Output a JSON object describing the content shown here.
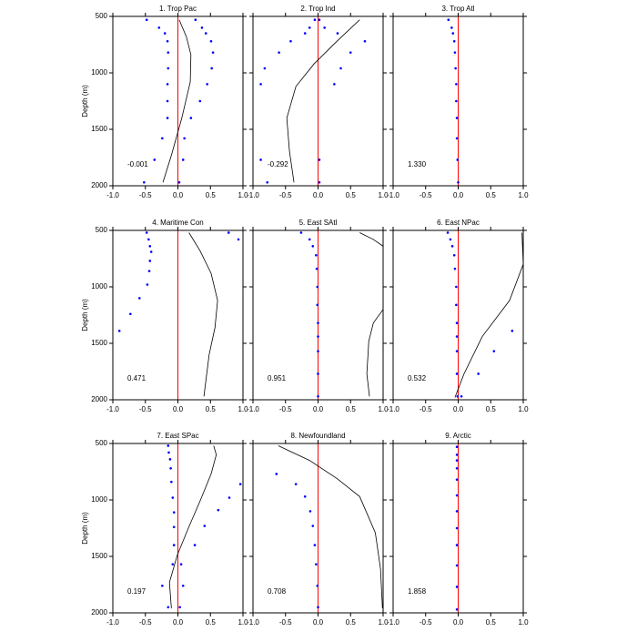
{
  "chart_data": [
    {
      "type": "line",
      "title": "1. Trop Pac",
      "annotation": "-0.001",
      "ylabel": "Depth (m)",
      "ytick_labels": true,
      "y_inverted": true,
      "ref_line_x": 0,
      "ref_color": "#ff0000",
      "xlim": [
        -1,
        1
      ],
      "ylim": [
        500,
        2000
      ],
      "xticks": [
        {
          "value": -1,
          "label": "-1.0"
        },
        {
          "value": -0.5,
          "label": "-0.5"
        },
        {
          "value": 0,
          "label": "0.0"
        },
        {
          "value": 0.5,
          "label": "0.5"
        },
        {
          "value": 1,
          "label": "1.0"
        }
      ],
      "yticks": [
        500,
        1000,
        1500,
        2000
      ],
      "series": [
        {
          "kind": "line",
          "color": "#000000",
          "x": [
            0.02,
            0.13,
            0.2,
            0.19,
            0.06,
            -0.1,
            -0.23
          ],
          "y": [
            530,
            680,
            840,
            1080,
            1400,
            1730,
            1970
          ]
        },
        {
          "kind": "points",
          "color": "#0000ff",
          "x": [
            -0.48,
            -0.29,
            -0.2,
            -0.16,
            -0.15,
            -0.15,
            -0.16,
            -0.16,
            -0.16,
            -0.24,
            -0.36,
            -0.52
          ],
          "y": [
            530,
            600,
            650,
            720,
            820,
            960,
            1100,
            1250,
            1400,
            1580,
            1770,
            1970
          ]
        },
        {
          "kind": "points",
          "color": "#0000ff",
          "x": [
            0.27,
            0.37,
            0.43,
            0.51,
            0.54,
            0.52,
            0.45,
            0.34,
            0.2,
            0.1,
            0.08,
            0.02
          ],
          "y": [
            530,
            600,
            650,
            720,
            820,
            960,
            1100,
            1250,
            1400,
            1580,
            1770,
            1970
          ]
        }
      ]
    },
    {
      "type": "line",
      "title": "2. Trop Ind",
      "annotation": "-0.292",
      "ytick_labels": false,
      "y_inverted": true,
      "ref_line_x": 0,
      "ref_color": "#ff0000",
      "xlim": [
        -1,
        1
      ],
      "ylim": [
        500,
        2000
      ],
      "xticks": [
        {
          "value": -1,
          "label": "-1.0"
        },
        {
          "value": -0.5,
          "label": "-0.5"
        },
        {
          "value": 0,
          "label": "0.0"
        },
        {
          "value": 0.5,
          "label": "0.5"
        },
        {
          "value": 1,
          "label": "1.0"
        }
      ],
      "yticks": [
        500,
        1000,
        1500,
        2000
      ],
      "series": [
        {
          "kind": "line",
          "color": "#000000",
          "x": [
            0.64,
            0.29,
            -0.06,
            -0.34,
            -0.48,
            -0.44,
            -0.37
          ],
          "y": [
            530,
            720,
            920,
            1120,
            1400,
            1690,
            1970
          ]
        },
        {
          "kind": "points",
          "color": "#0000ff",
          "x": [
            -0.05,
            -0.13,
            -0.2,
            -0.42,
            -0.6,
            -0.82,
            -0.88,
            null,
            null,
            null,
            -0.88,
            -0.78
          ],
          "y": [
            530,
            600,
            650,
            720,
            820,
            960,
            1100,
            1250,
            1400,
            1580,
            1770,
            1970
          ]
        },
        {
          "kind": "points",
          "color": "#0000ff",
          "x": [
            0.02,
            0.1,
            0.3,
            0.72,
            0.5,
            0.35,
            0.25,
            null,
            null,
            null,
            0.02,
            0.02
          ],
          "y": [
            530,
            600,
            650,
            720,
            820,
            960,
            1100,
            1250,
            1400,
            1580,
            1770,
            1970
          ]
        }
      ]
    },
    {
      "type": "line",
      "title": "3. Trop Atl",
      "annotation": "1.330",
      "ytick_labels": false,
      "y_inverted": true,
      "ref_line_x": 0,
      "ref_color": "#ff0000",
      "xlim": [
        -1,
        1
      ],
      "ylim": [
        500,
        2000
      ],
      "xticks": [
        {
          "value": -1,
          "label": "-1.0"
        },
        {
          "value": -0.5,
          "label": "-0.5"
        },
        {
          "value": 0,
          "label": "0.0"
        },
        {
          "value": 0.5,
          "label": "0.5"
        },
        {
          "value": 1,
          "label": "1.0"
        }
      ],
      "yticks": [
        500,
        1000,
        1500,
        2000
      ],
      "series": [
        {
          "kind": "points",
          "color": "#0000ff",
          "x": [
            -0.15,
            -0.1,
            -0.08,
            -0.06,
            -0.05,
            -0.04,
            -0.03,
            -0.03,
            -0.02,
            -0.02,
            -0.01,
            0
          ],
          "y": [
            530,
            600,
            650,
            720,
            820,
            960,
            1100,
            1250,
            1400,
            1580,
            1770,
            1970
          ]
        }
      ]
    },
    {
      "type": "line",
      "title": "4. Maritime Con",
      "annotation": "0.471",
      "ylabel": "Depth (m)",
      "ytick_labels": true,
      "y_inverted": true,
      "ref_line_x": 0,
      "ref_color": "#ff0000",
      "xlim": [
        -1,
        1
      ],
      "ylim": [
        500,
        2000
      ],
      "xticks": [
        {
          "value": -1,
          "label": "-1.0"
        },
        {
          "value": -0.5,
          "label": "-0.5"
        },
        {
          "value": 0,
          "label": "0.0"
        },
        {
          "value": 0.5,
          "label": "0.5"
        },
        {
          "value": 1,
          "label": "1.0"
        }
      ],
      "yticks": [
        500,
        1000,
        1500,
        2000
      ],
      "series": [
        {
          "kind": "line",
          "color": "#000000",
          "x": [
            0.17,
            0.34,
            0.51,
            0.61,
            0.57,
            0.48,
            0.4
          ],
          "y": [
            520,
            680,
            880,
            1120,
            1360,
            1600,
            1970
          ]
        },
        {
          "kind": "points",
          "color": "#0000ff",
          "x": [
            -0.48,
            -0.45,
            -0.43,
            -0.41,
            -0.43,
            -0.44,
            -0.47,
            -0.59,
            -0.73,
            -0.9
          ],
          "y": [
            520,
            580,
            640,
            690,
            770,
            860,
            980,
            1100,
            1240,
            1390
          ]
        },
        {
          "kind": "points",
          "color": "#0000ff",
          "x": [
            0.78,
            0.93
          ],
          "y": [
            520,
            580
          ]
        }
      ]
    },
    {
      "type": "line",
      "title": "5. East SAtl",
      "annotation": "0.951",
      "ytick_labels": false,
      "y_inverted": true,
      "ref_line_x": 0,
      "ref_color": "#ff0000",
      "xlim": [
        -1,
        1
      ],
      "ylim": [
        500,
        2000
      ],
      "xticks": [
        {
          "value": -1,
          "label": "-1.0"
        },
        {
          "value": -0.5,
          "label": "-0.5"
        },
        {
          "value": 0,
          "label": "0.0"
        },
        {
          "value": 0.5,
          "label": "0.5"
        },
        {
          "value": 1,
          "label": "1.0"
        }
      ],
      "yticks": [
        500,
        1000,
        1500,
        2000
      ],
      "series": [
        {
          "kind": "line",
          "color": "#000000",
          "x": [
            0.64,
            0.85,
            1,
            null,
            1,
            0.85,
            0.78,
            0.75,
            0.79
          ],
          "y": [
            520,
            580,
            640,
            null,
            1200,
            1320,
            1480,
            1770,
            1970
          ]
        },
        {
          "kind": "points",
          "color": "#0000ff",
          "x": [
            -0.26,
            -0.13,
            -0.08,
            -0.03,
            -0.02,
            -0.01,
            -0.01,
            0,
            0,
            0,
            0,
            0
          ],
          "y": [
            520,
            580,
            640,
            720,
            840,
            1000,
            1160,
            1320,
            1440,
            1570,
            1770,
            1970
          ]
        }
      ]
    },
    {
      "type": "line",
      "title": "6. East NPac",
      "annotation": "0.532",
      "ytick_labels": false,
      "y_inverted": true,
      "ref_line_x": 0,
      "ref_color": "#ff0000",
      "xlim": [
        -1,
        1
      ],
      "ylim": [
        500,
        2000
      ],
      "xticks": [
        {
          "value": -1,
          "label": "-1.0"
        },
        {
          "value": -0.5,
          "label": "-0.5"
        },
        {
          "value": 0,
          "label": "0.0"
        },
        {
          "value": 0.5,
          "label": "0.5"
        },
        {
          "value": 1,
          "label": "1.0"
        }
      ],
      "yticks": [
        500,
        1000,
        1500,
        2000
      ],
      "series": [
        {
          "kind": "line",
          "color": "#000000",
          "x": [
            0.98,
            1,
            0.79,
            0.37,
            0.09,
            -0.05
          ],
          "y": [
            520,
            800,
            1120,
            1440,
            1770,
            1980
          ]
        },
        {
          "kind": "points",
          "color": "#0000ff",
          "x": [
            -0.16,
            -0.12,
            -0.09,
            -0.06,
            -0.05,
            -0.03,
            -0.03,
            -0.02,
            -0.02,
            -0.02,
            -0.02,
            -0.01
          ],
          "y": [
            520,
            580,
            640,
            720,
            840,
            1000,
            1160,
            1320,
            1440,
            1570,
            1770,
            1970
          ]
        },
        {
          "kind": "points",
          "color": "#0000ff",
          "x": [
            0.83,
            0.55,
            0.31,
            0.05
          ],
          "y": [
            1390,
            1570,
            1770,
            1970
          ]
        }
      ]
    },
    {
      "type": "line",
      "title": "7. East SPac",
      "annotation": "0.197",
      "ylabel": "Depth (m)",
      "ytick_labels": true,
      "y_inverted": true,
      "ref_line_x": 0,
      "ref_color": "#ff0000",
      "xlim": [
        -1,
        1
      ],
      "ylim": [
        500,
        2000
      ],
      "xticks": [
        {
          "value": -1,
          "label": "-1.0"
        },
        {
          "value": -0.5,
          "label": "-0.5"
        },
        {
          "value": 0,
          "label": "0.0"
        },
        {
          "value": 0.5,
          "label": "0.5"
        },
        {
          "value": 1,
          "label": "1.0"
        }
      ],
      "yticks": [
        500,
        1000,
        1500,
        2000
      ],
      "series": [
        {
          "kind": "line",
          "color": "#000000",
          "x": [
            0.55,
            0.59,
            0.51,
            0.34,
            0.16,
            -0.01,
            -0.13,
            -0.1
          ],
          "y": [
            520,
            600,
            770,
            1010,
            1250,
            1490,
            1730,
            1960
          ]
        },
        {
          "kind": "points",
          "color": "#0000ff",
          "x": [
            -0.15,
            -0.14,
            -0.12,
            -0.11,
            -0.1,
            -0.08,
            -0.06,
            -0.06,
            -0.06,
            -0.08,
            -0.24,
            -0.15
          ],
          "y": [
            520,
            580,
            640,
            720,
            840,
            980,
            1110,
            1240,
            1400,
            1570,
            1760,
            1950
          ]
        },
        {
          "kind": "points",
          "color": "#0000ff",
          "x": [
            0.96,
            0.79,
            0.62,
            0.41,
            0.26,
            0.05,
            0.08,
            0.03
          ],
          "y": [
            860,
            980,
            1090,
            1230,
            1400,
            1570,
            1760,
            1950
          ]
        }
      ]
    },
    {
      "type": "line",
      "title": "8. Newfoundland",
      "annotation": "0.708",
      "ytick_labels": false,
      "y_inverted": true,
      "ref_line_x": 0,
      "ref_color": "#ff0000",
      "xlim": [
        -1,
        1
      ],
      "ylim": [
        500,
        2000
      ],
      "xticks": [
        {
          "value": -1,
          "label": "-1.0"
        },
        {
          "value": -0.5,
          "label": "-0.5"
        },
        {
          "value": 0,
          "label": "0.0"
        },
        {
          "value": 0.5,
          "label": "0.5"
        },
        {
          "value": 1,
          "label": "1.0"
        }
      ],
      "yticks": [
        500,
        1000,
        1500,
        2000
      ],
      "series": [
        {
          "kind": "line",
          "color": "#000000",
          "x": [
            -0.61,
            -0.13,
            0.29,
            0.64,
            0.88,
            0.96,
            0.99
          ],
          "y": [
            520,
            650,
            810,
            970,
            1290,
            1610,
            1960
          ]
        },
        {
          "kind": "points",
          "color": "#0000ff",
          "x": [
            -0.64,
            -0.34,
            -0.2,
            -0.12,
            -0.08,
            -0.05,
            -0.03,
            -0.01,
            0
          ],
          "y": [
            770,
            860,
            970,
            1100,
            1230,
            1400,
            1570,
            1760,
            1950
          ]
        }
      ]
    },
    {
      "type": "line",
      "title": "9. Arctic",
      "annotation": "1.858",
      "ytick_labels": false,
      "y_inverted": true,
      "ref_line_x": 0,
      "ref_color": "#ff0000",
      "xlim": [
        -1,
        1
      ],
      "ylim": [
        500,
        2000
      ],
      "xticks": [
        {
          "value": -1,
          "label": "-1.0"
        },
        {
          "value": -0.5,
          "label": "-0.5"
        },
        {
          "value": 0,
          "label": "0.0"
        },
        {
          "value": 0.5,
          "label": "0.5"
        },
        {
          "value": 1,
          "label": "1.0"
        }
      ],
      "yticks": [
        500,
        1000,
        1500,
        2000
      ],
      "series": [
        {
          "kind": "points",
          "color": "#0000ff",
          "x": [
            -0.02,
            -0.02,
            -0.02,
            -0.02,
            -0.02,
            -0.02,
            -0.02,
            -0.02,
            -0.02,
            -0.02,
            -0.02,
            -0.02
          ],
          "y": [
            530,
            600,
            650,
            720,
            820,
            960,
            1100,
            1250,
            1400,
            1580,
            1770,
            1970
          ]
        }
      ]
    }
  ]
}
